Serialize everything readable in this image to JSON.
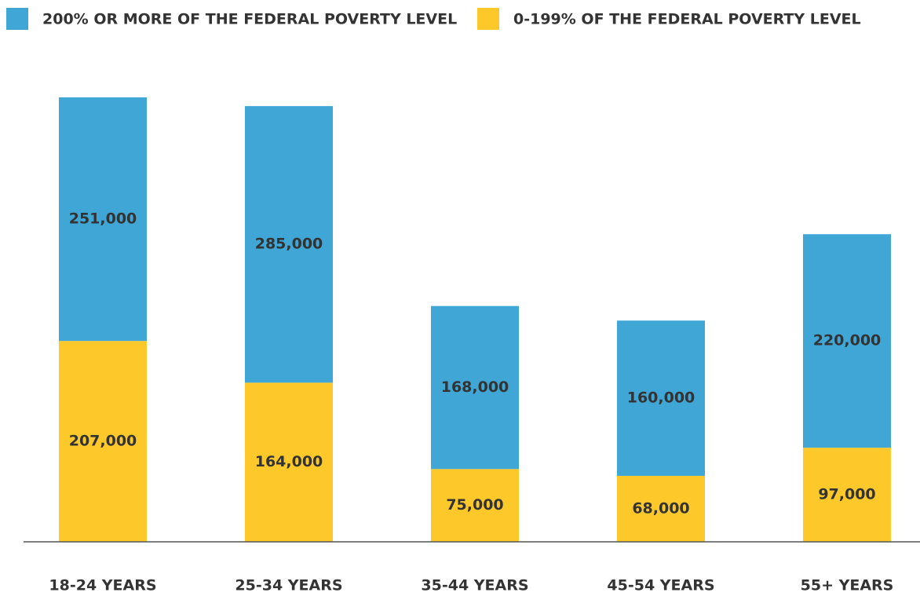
{
  "chart_data": {
    "type": "stacked_bar",
    "categories": [
      "18-24 YEARS",
      "25-34 YEARS",
      "35-44 YEARS",
      "45-54 YEARS",
      "55+ YEARS"
    ],
    "series": [
      {
        "name": "200% OR MORE OF THE FEDERAL POVERTY LEVEL",
        "color": "#3fa6d6",
        "values": [
          251000,
          285000,
          168000,
          160000,
          220000
        ],
        "value_labels": [
          "251,000",
          "285,000",
          "168,000",
          "160,000",
          "220,000"
        ]
      },
      {
        "name": "0-199% OF THE FEDERAL POVERTY LEVEL",
        "color": "#fdc92a",
        "values": [
          207000,
          164000,
          75000,
          68000,
          97000
        ],
        "value_labels": [
          "207,000",
          "164,000",
          "75,000",
          "68,000",
          "97,000"
        ]
      }
    ]
  }
}
